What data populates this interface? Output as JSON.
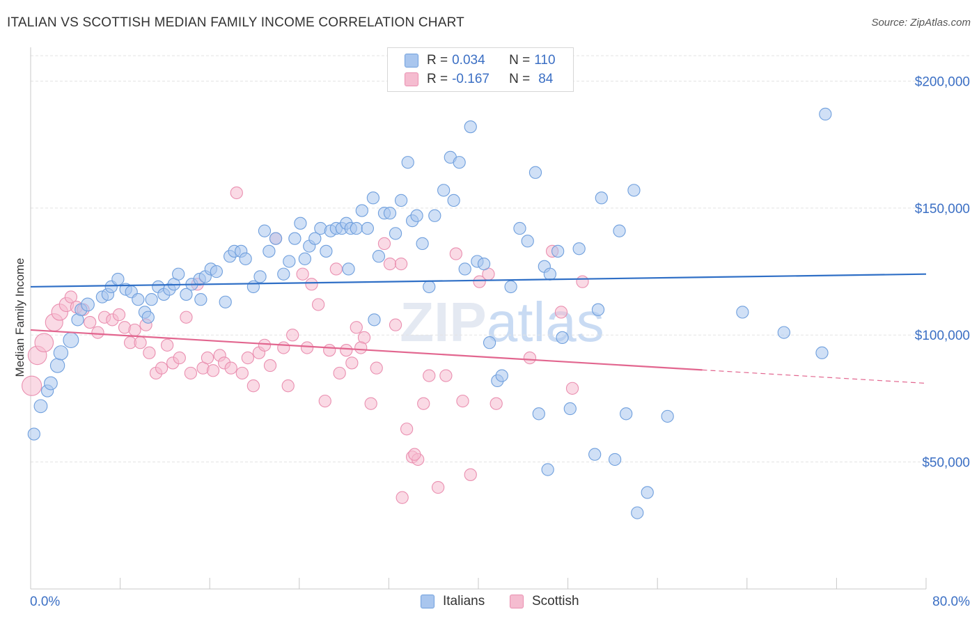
{
  "title": "ITALIAN VS SCOTTISH MEDIAN FAMILY INCOME CORRELATION CHART",
  "source": "Source: ZipAtlas.com",
  "watermark": "ZIPatlas",
  "legend": {
    "rows": [
      {
        "r_label": "R =",
        "r_value": "0.034",
        "n_label": "N =",
        "n_value": "110"
      },
      {
        "r_label": "R =",
        "r_value": "-0.167",
        "n_label": "N =",
        "n_value": "84"
      }
    ]
  },
  "bottom_legend": {
    "italians": "Italians",
    "scottish": "Scottish"
  },
  "colors": {
    "italians_fill": "#a9c6ee",
    "italians_stroke": "#6f9fdd",
    "italians_line": "#2f6fc6",
    "scottish_fill": "#f5bcd0",
    "scottish_stroke": "#ea8fb0",
    "scottish_line": "#e2668f",
    "tick_text": "#3b6fc4",
    "grid": "#e3e3e3"
  },
  "chart_data": {
    "type": "scatter",
    "title": "ITALIAN VS SCOTTISH MEDIAN FAMILY INCOME CORRELATION CHART",
    "xlabel": "",
    "ylabel": "Median Family Income",
    "xlim": [
      0,
      80
    ],
    "ylim": [
      0,
      210000
    ],
    "x_tick_labels": [
      "0.0%",
      "80.0%"
    ],
    "y_ticks": [
      50000,
      100000,
      150000,
      200000
    ],
    "y_tick_labels": [
      "$50,000",
      "$100,000",
      "$150,000",
      "$200,000"
    ],
    "grid": true,
    "legend_position": "top-center",
    "series": [
      {
        "name": "Italians",
        "r": 0.034,
        "n": 110,
        "trend": {
          "x": [
            0,
            80
          ],
          "y": [
            119000,
            124000
          ],
          "dashed_from": null
        },
        "points": [
          [
            0.3,
            61000,
            11
          ],
          [
            0.9,
            72000,
            12
          ],
          [
            1.5,
            78000,
            11
          ],
          [
            1.8,
            81000,
            12
          ],
          [
            2.4,
            88000,
            13
          ],
          [
            2.7,
            93000,
            13
          ],
          [
            3.6,
            98000,
            14
          ],
          [
            4.2,
            106000,
            11
          ],
          [
            4.5,
            110000,
            11
          ],
          [
            5.1,
            112000,
            12
          ],
          [
            6.4,
            115000,
            11
          ],
          [
            6.9,
            116000,
            11
          ],
          [
            7.2,
            119000,
            11
          ],
          [
            7.8,
            122000,
            11
          ],
          [
            8.5,
            118000,
            11
          ],
          [
            9.0,
            117000,
            11
          ],
          [
            9.6,
            114000,
            11
          ],
          [
            10.2,
            109000,
            11
          ],
          [
            10.5,
            107000,
            11
          ],
          [
            10.8,
            114000,
            11
          ],
          [
            11.4,
            119000,
            11
          ],
          [
            11.9,
            116000,
            11
          ],
          [
            12.4,
            118000,
            11
          ],
          [
            12.8,
            120000,
            11
          ],
          [
            13.2,
            124000,
            11
          ],
          [
            13.9,
            116000,
            11
          ],
          [
            14.4,
            120000,
            11
          ],
          [
            15.1,
            122000,
            11
          ],
          [
            15.6,
            123000,
            11
          ],
          [
            16.1,
            126000,
            11
          ],
          [
            16.6,
            125000,
            11
          ],
          [
            17.4,
            113000,
            11
          ],
          [
            17.8,
            131000,
            11
          ],
          [
            18.2,
            133000,
            11
          ],
          [
            18.8,
            133000,
            11
          ],
          [
            19.2,
            130000,
            11
          ],
          [
            19.9,
            119000,
            11
          ],
          [
            20.5,
            123000,
            11
          ],
          [
            20.9,
            141000,
            11
          ],
          [
            21.3,
            133000,
            11
          ],
          [
            21.9,
            138000,
            11
          ],
          [
            22.6,
            124000,
            11
          ],
          [
            23.1,
            129000,
            11
          ],
          [
            23.6,
            138000,
            11
          ],
          [
            24.1,
            144000,
            11
          ],
          [
            24.5,
            130000,
            11
          ],
          [
            24.9,
            135000,
            11
          ],
          [
            25.4,
            138000,
            11
          ],
          [
            25.9,
            142000,
            11
          ],
          [
            26.4,
            133000,
            11
          ],
          [
            26.8,
            141000,
            11
          ],
          [
            27.3,
            142000,
            11
          ],
          [
            27.8,
            142000,
            11
          ],
          [
            28.2,
            144000,
            11
          ],
          [
            28.6,
            142000,
            11
          ],
          [
            29.1,
            142000,
            11
          ],
          [
            29.6,
            149000,
            11
          ],
          [
            30.1,
            142000,
            11
          ],
          [
            30.6,
            154000,
            11
          ],
          [
            31.1,
            131000,
            11
          ],
          [
            31.6,
            148000,
            11
          ],
          [
            32.1,
            148000,
            11
          ],
          [
            32.6,
            140000,
            11
          ],
          [
            33.1,
            153000,
            11
          ],
          [
            33.7,
            168000,
            11
          ],
          [
            34.1,
            145000,
            11
          ],
          [
            34.5,
            147000,
            11
          ],
          [
            35.0,
            136000,
            11
          ],
          [
            35.6,
            119000,
            11
          ],
          [
            36.1,
            147000,
            11
          ],
          [
            36.9,
            157000,
            11
          ],
          [
            37.5,
            170000,
            11
          ],
          [
            37.8,
            153000,
            11
          ],
          [
            38.3,
            168000,
            11
          ],
          [
            38.8,
            126000,
            11
          ],
          [
            39.3,
            182000,
            11
          ],
          [
            39.9,
            129000,
            11
          ],
          [
            40.5,
            128000,
            11
          ],
          [
            41.0,
            97000,
            11
          ],
          [
            41.7,
            82000,
            11
          ],
          [
            42.1,
            84000,
            11
          ],
          [
            42.9,
            119000,
            11
          ],
          [
            43.7,
            142000,
            11
          ],
          [
            44.4,
            137000,
            11
          ],
          [
            45.1,
            164000,
            11
          ],
          [
            45.4,
            69000,
            11
          ],
          [
            45.9,
            127000,
            11
          ],
          [
            46.4,
            124000,
            11
          ],
          [
            47.1,
            133000,
            11
          ],
          [
            47.5,
            99000,
            11
          ],
          [
            48.2,
            71000,
            11
          ],
          [
            49.0,
            134000,
            11
          ],
          [
            50.4,
            53000,
            11
          ],
          [
            50.7,
            110000,
            11
          ],
          [
            51.0,
            154000,
            11
          ],
          [
            52.2,
            51000,
            11
          ],
          [
            52.6,
            141000,
            11
          ],
          [
            53.2,
            69000,
            11
          ],
          [
            53.9,
            157000,
            11
          ],
          [
            54.2,
            30000,
            11
          ],
          [
            55.1,
            38000,
            11
          ],
          [
            56.9,
            68000,
            11
          ],
          [
            46.2,
            47000,
            11
          ],
          [
            63.6,
            109000,
            11
          ],
          [
            67.3,
            101000,
            11
          ],
          [
            70.7,
            93000,
            11
          ],
          [
            71.0,
            187000,
            11
          ],
          [
            15.2,
            114000,
            11
          ],
          [
            30.7,
            106000,
            11
          ],
          [
            28.4,
            126000,
            11
          ]
        ]
      },
      {
        "name": "Scottish",
        "r": -0.167,
        "n": 84,
        "trend": {
          "x": [
            0,
            80
          ],
          "y": [
            102000,
            81000
          ],
          "dashed_from": 60
        },
        "points": [
          [
            0.1,
            80000,
            18
          ],
          [
            0.6,
            92000,
            17
          ],
          [
            1.2,
            97000,
            17
          ],
          [
            2.1,
            105000,
            16
          ],
          [
            2.6,
            109000,
            15
          ],
          [
            3.2,
            112000,
            13
          ],
          [
            3.6,
            115000,
            11
          ],
          [
            4.1,
            111000,
            11
          ],
          [
            4.7,
            110000,
            11
          ],
          [
            5.3,
            105000,
            11
          ],
          [
            6.0,
            101000,
            11
          ],
          [
            6.6,
            107000,
            11
          ],
          [
            7.3,
            106000,
            11
          ],
          [
            7.9,
            108000,
            11
          ],
          [
            8.4,
            103000,
            11
          ],
          [
            8.9,
            97000,
            11
          ],
          [
            9.3,
            102000,
            11
          ],
          [
            9.8,
            97000,
            11
          ],
          [
            10.3,
            104000,
            11
          ],
          [
            10.6,
            93000,
            11
          ],
          [
            11.2,
            85000,
            11
          ],
          [
            11.7,
            87000,
            11
          ],
          [
            12.2,
            96000,
            11
          ],
          [
            12.7,
            89000,
            11
          ],
          [
            13.3,
            91000,
            11
          ],
          [
            13.9,
            107000,
            11
          ],
          [
            14.3,
            85000,
            11
          ],
          [
            14.9,
            120000,
            11
          ],
          [
            15.4,
            87000,
            11
          ],
          [
            15.8,
            91000,
            11
          ],
          [
            16.3,
            86000,
            11
          ],
          [
            16.9,
            92000,
            11
          ],
          [
            17.3,
            89000,
            11
          ],
          [
            17.9,
            87000,
            11
          ],
          [
            18.4,
            156000,
            11
          ],
          [
            18.9,
            85000,
            11
          ],
          [
            19.4,
            91000,
            11
          ],
          [
            19.9,
            80000,
            11
          ],
          [
            20.4,
            93000,
            11
          ],
          [
            20.9,
            96000,
            11
          ],
          [
            21.4,
            88000,
            11
          ],
          [
            21.9,
            138000,
            11
          ],
          [
            22.6,
            95000,
            11
          ],
          [
            23.0,
            80000,
            11
          ],
          [
            23.4,
            100000,
            11
          ],
          [
            24.3,
            124000,
            11
          ],
          [
            25.1,
            120000,
            11
          ],
          [
            25.7,
            112000,
            11
          ],
          [
            26.3,
            74000,
            11
          ],
          [
            26.7,
            94000,
            11
          ],
          [
            27.3,
            126000,
            11
          ],
          [
            27.6,
            85000,
            11
          ],
          [
            28.2,
            94000,
            11
          ],
          [
            28.7,
            89000,
            11
          ],
          [
            29.1,
            103000,
            11
          ],
          [
            29.8,
            99000,
            11
          ],
          [
            30.4,
            73000,
            11
          ],
          [
            30.9,
            87000,
            11
          ],
          [
            31.6,
            136000,
            11
          ],
          [
            32.1,
            128000,
            11
          ],
          [
            32.6,
            104000,
            11
          ],
          [
            33.1,
            128000,
            11
          ],
          [
            33.6,
            63000,
            11
          ],
          [
            34.1,
            52000,
            11
          ],
          [
            34.6,
            51000,
            11
          ],
          [
            35.1,
            73000,
            11
          ],
          [
            35.6,
            84000,
            11
          ],
          [
            36.4,
            40000,
            11
          ],
          [
            37.1,
            84000,
            11
          ],
          [
            38.0,
            132000,
            11
          ],
          [
            38.6,
            74000,
            11
          ],
          [
            39.3,
            45000,
            11
          ],
          [
            40.1,
            121000,
            11
          ],
          [
            40.9,
            124000,
            11
          ],
          [
            41.6,
            73000,
            11
          ],
          [
            44.6,
            91000,
            11
          ],
          [
            46.6,
            133000,
            11
          ],
          [
            47.4,
            109000,
            11
          ],
          [
            48.4,
            79000,
            11
          ],
          [
            49.3,
            121000,
            11
          ],
          [
            33.2,
            36000,
            11
          ],
          [
            34.3,
            53000,
            11
          ],
          [
            29.5,
            95000,
            11
          ],
          [
            24.7,
            95000,
            11
          ]
        ]
      }
    ]
  }
}
